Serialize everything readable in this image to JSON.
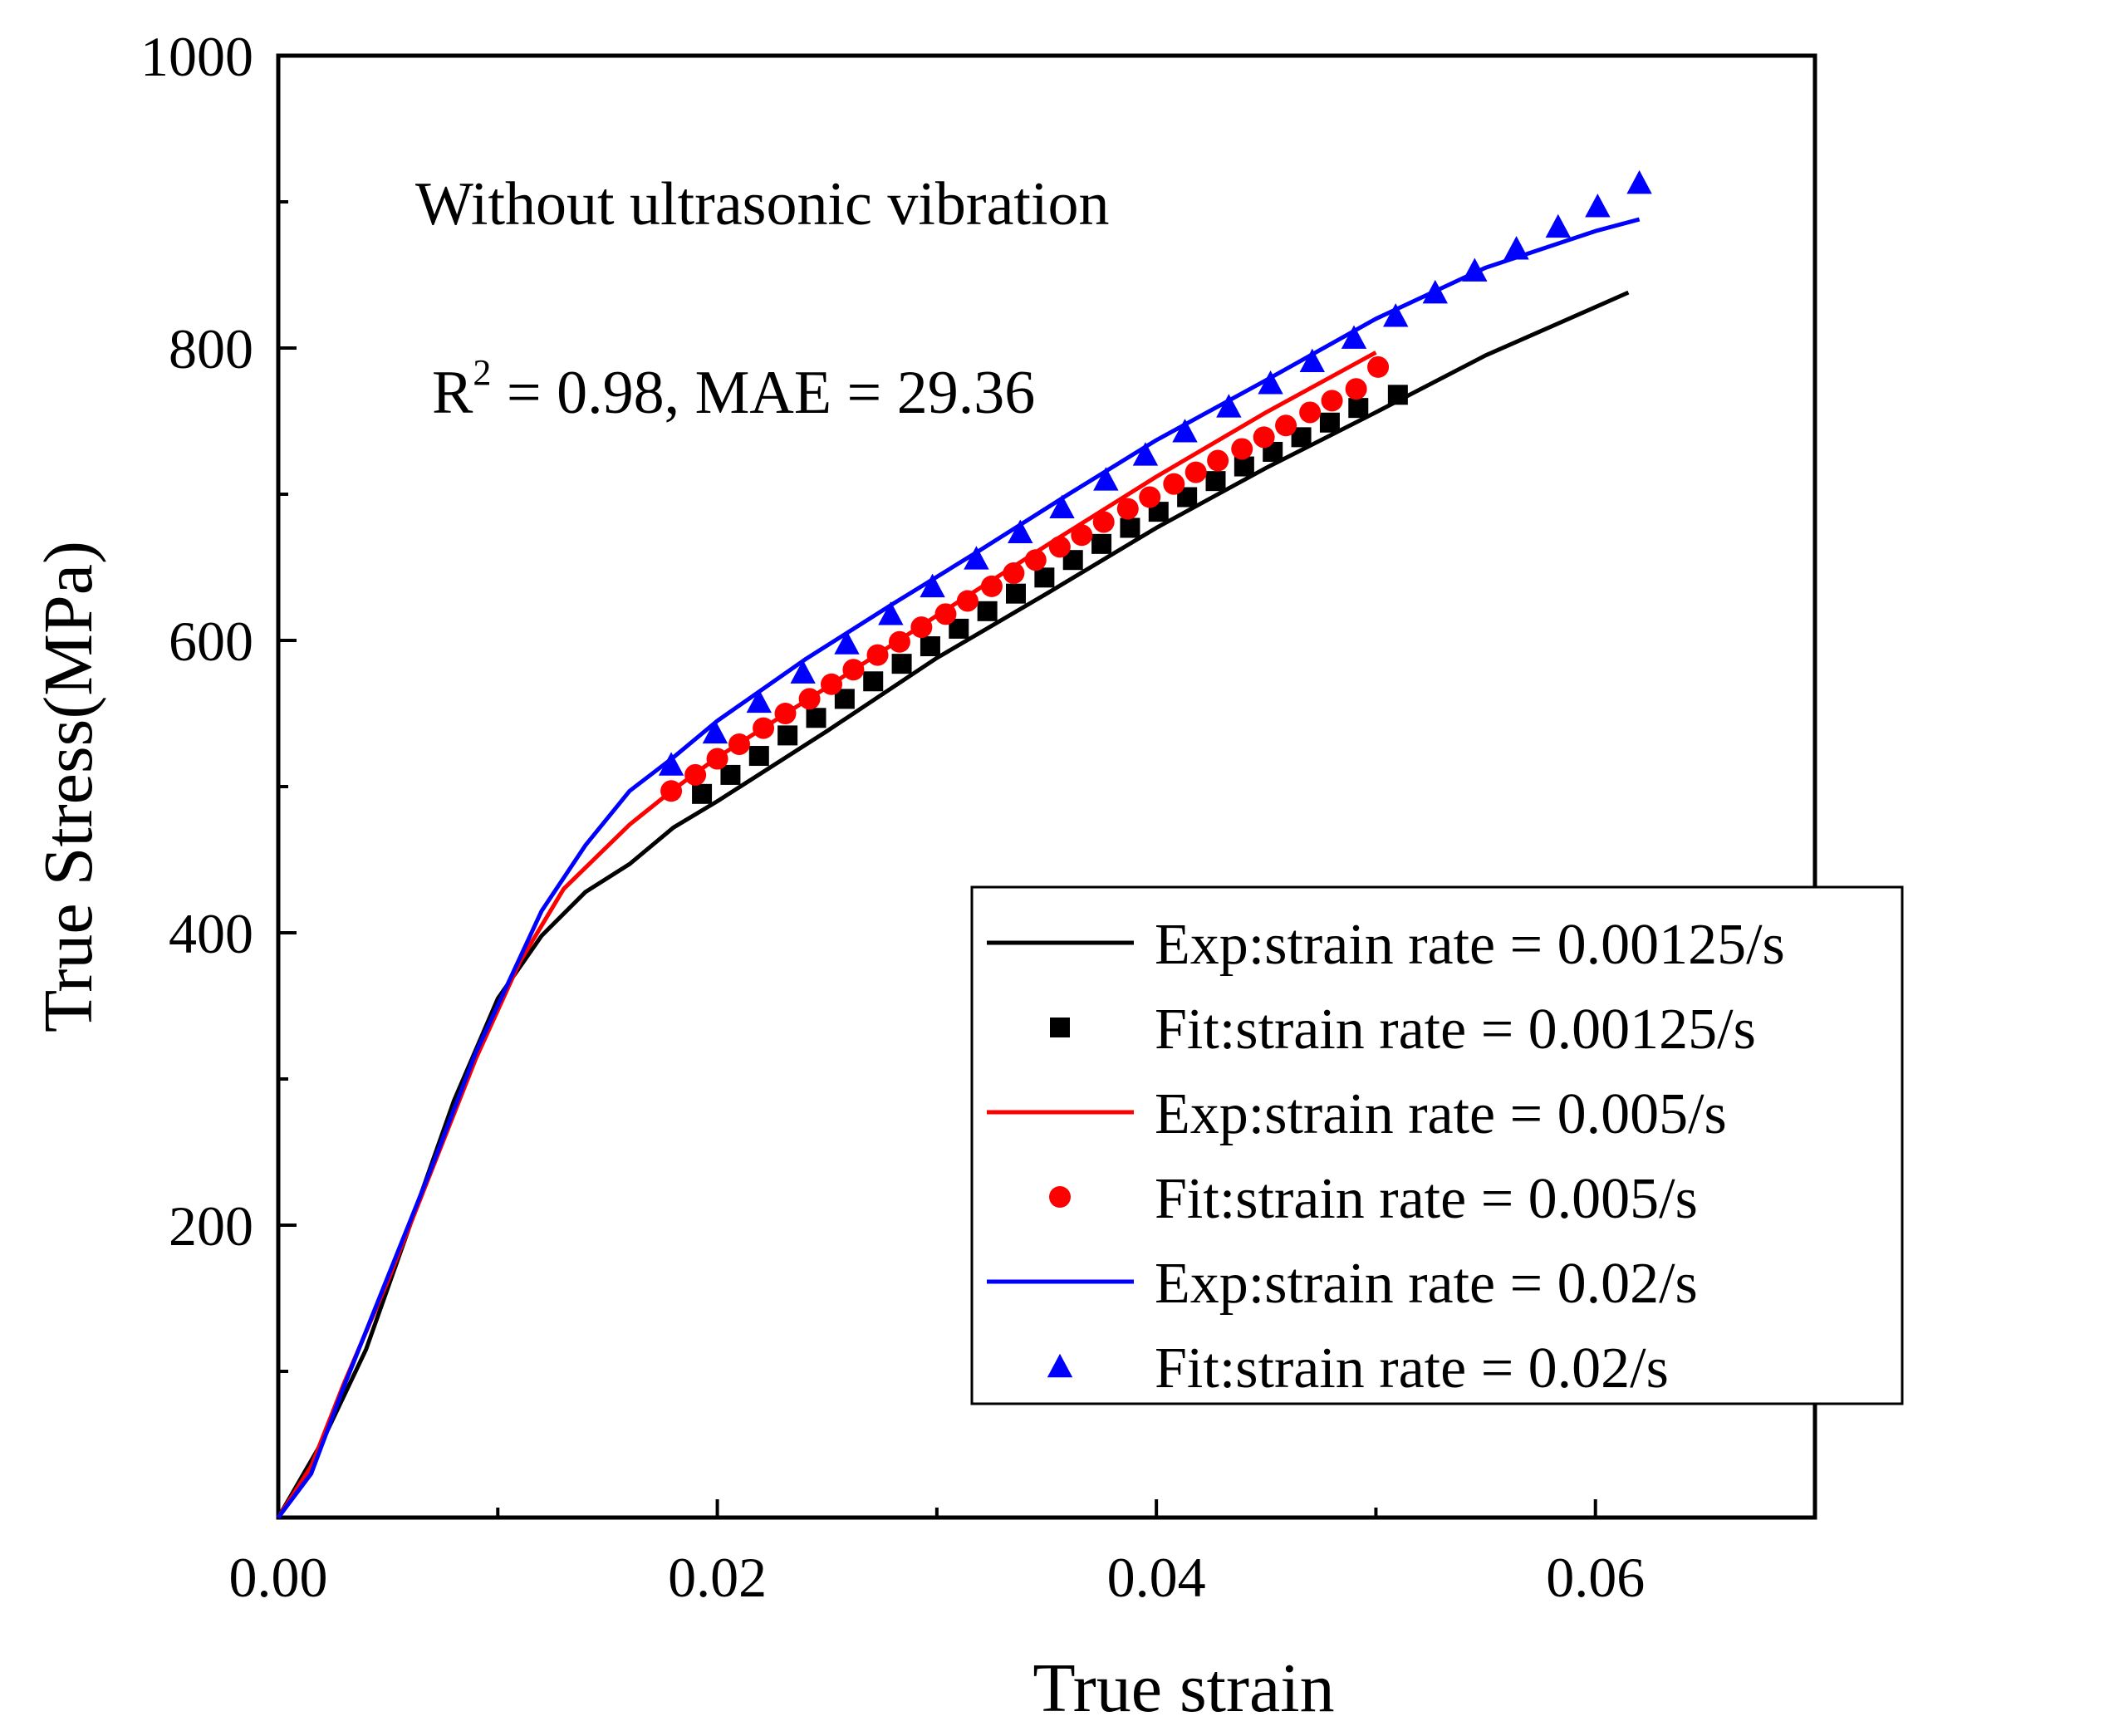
{
  "chart_data": {
    "type": "line",
    "title": "",
    "xlabel": "True strain",
    "ylabel": "True Stress(MPa)",
    "xlim": [
      0.0,
      0.07
    ],
    "ylim": [
      0,
      1000
    ],
    "x_major_ticks": [
      0.0,
      0.02,
      0.04,
      0.06
    ],
    "x_tick_labels": [
      "0.00",
      "0.02",
      "0.04",
      "0.06"
    ],
    "x_minor_ticks": [
      0.01,
      0.03,
      0.05
    ],
    "y_major_ticks": [
      200,
      400,
      600,
      800,
      1000
    ],
    "y_tick_labels": [
      "200",
      "400",
      "600",
      "800",
      "1000"
    ],
    "y_minor_ticks": [
      100,
      300,
      500,
      700,
      900
    ],
    "grid": false,
    "legend_position": "lower-right",
    "annotations": {
      "condition": "Without ultrasonic vibration",
      "r2_label": "R",
      "r2_sup": "2",
      "r2_rest": " = 0.98, MAE = 29.36"
    },
    "series": [
      {
        "name": "Exp:strain rate = 0.00125/s",
        "kind": "line",
        "color": "#000000",
        "points": [
          [
            0,
            0
          ],
          [
            0.002,
            52
          ],
          [
            0.004,
            115
          ],
          [
            0.006,
            200
          ],
          [
            0.008,
            285
          ],
          [
            0.01,
            355
          ],
          [
            0.012,
            398
          ],
          [
            0.014,
            428
          ],
          [
            0.016,
            447
          ],
          [
            0.018,
            472
          ],
          [
            0.02,
            490
          ],
          [
            0.025,
            538
          ],
          [
            0.03,
            588
          ],
          [
            0.035,
            632
          ],
          [
            0.04,
            677
          ],
          [
            0.045,
            718
          ],
          [
            0.05,
            756
          ],
          [
            0.055,
            795
          ],
          [
            0.06,
            828
          ],
          [
            0.0615,
            838
          ]
        ]
      },
      {
        "name": "Fit:strain rate = 0.00125/s",
        "kind": "scatter",
        "marker": "square",
        "color": "#000000",
        "points": [
          [
            0.0193,
            495
          ],
          [
            0.0206,
            508
          ],
          [
            0.0219,
            521
          ],
          [
            0.0232,
            535
          ],
          [
            0.0245,
            547
          ],
          [
            0.0258,
            560
          ],
          [
            0.0271,
            572
          ],
          [
            0.0284,
            584
          ],
          [
            0.0297,
            596
          ],
          [
            0.031,
            608
          ],
          [
            0.0323,
            620
          ],
          [
            0.0336,
            632
          ],
          [
            0.0349,
            643
          ],
          [
            0.0362,
            655
          ],
          [
            0.0375,
            666
          ],
          [
            0.0388,
            677
          ],
          [
            0.0401,
            688
          ],
          [
            0.0414,
            698
          ],
          [
            0.0427,
            709
          ],
          [
            0.044,
            719
          ],
          [
            0.0453,
            729
          ],
          [
            0.0466,
            739
          ],
          [
            0.0479,
            749
          ],
          [
            0.0492,
            759
          ],
          [
            0.051,
            768
          ]
        ]
      },
      {
        "name": "Exp:strain rate = 0.005/s",
        "kind": "line",
        "color": "#ff0000",
        "points": [
          [
            0,
            0
          ],
          [
            0.0015,
            35
          ],
          [
            0.003,
            92
          ],
          [
            0.005,
            162
          ],
          [
            0.007,
            238
          ],
          [
            0.009,
            314
          ],
          [
            0.011,
            380
          ],
          [
            0.013,
            430
          ],
          [
            0.016,
            474
          ],
          [
            0.018,
            498
          ],
          [
            0.02,
            520
          ],
          [
            0.025,
            568
          ],
          [
            0.03,
            617
          ],
          [
            0.035,
            665
          ],
          [
            0.04,
            712
          ],
          [
            0.045,
            756
          ],
          [
            0.05,
            797
          ]
        ]
      },
      {
        "name": "Fit:strain rate = 0.005/s",
        "kind": "scatter",
        "marker": "circle",
        "color": "#ff0000",
        "points": [
          [
            0.0179,
            497
          ],
          [
            0.019,
            508
          ],
          [
            0.02,
            519
          ],
          [
            0.021,
            529
          ],
          [
            0.0221,
            540
          ],
          [
            0.0231,
            550
          ],
          [
            0.0242,
            560
          ],
          [
            0.0252,
            570
          ],
          [
            0.0262,
            580
          ],
          [
            0.0273,
            590
          ],
          [
            0.0283,
            599
          ],
          [
            0.0293,
            609
          ],
          [
            0.0304,
            618
          ],
          [
            0.0314,
            627
          ],
          [
            0.0325,
            637
          ],
          [
            0.0335,
            646
          ],
          [
            0.0345,
            655
          ],
          [
            0.0356,
            664
          ],
          [
            0.0366,
            672
          ],
          [
            0.0376,
            681
          ],
          [
            0.0387,
            690
          ],
          [
            0.0397,
            698
          ],
          [
            0.0408,
            707
          ],
          [
            0.0418,
            715
          ],
          [
            0.0428,
            723
          ],
          [
            0.0439,
            731
          ],
          [
            0.0449,
            739
          ],
          [
            0.0459,
            747
          ],
          [
            0.047,
            756
          ],
          [
            0.048,
            764
          ],
          [
            0.0491,
            772
          ],
          [
            0.0501,
            787
          ]
        ]
      },
      {
        "name": "Exp:strain rate = 0.02/s",
        "kind": "line",
        "color": "#0000ff",
        "points": [
          [
            0,
            0
          ],
          [
            0.0015,
            30
          ],
          [
            0.003,
            90
          ],
          [
            0.005,
            165
          ],
          [
            0.007,
            240
          ],
          [
            0.009,
            318
          ],
          [
            0.012,
            415
          ],
          [
            0.014,
            460
          ],
          [
            0.016,
            497
          ],
          [
            0.018,
            520
          ],
          [
            0.02,
            545
          ],
          [
            0.024,
            587
          ],
          [
            0.028,
            625
          ],
          [
            0.032,
            662
          ],
          [
            0.036,
            700
          ],
          [
            0.04,
            737
          ],
          [
            0.045,
            778
          ],
          [
            0.05,
            820
          ],
          [
            0.055,
            855
          ],
          [
            0.06,
            880
          ],
          [
            0.062,
            888
          ]
        ]
      },
      {
        "name": "Fit:strain rate = 0.02/s",
        "kind": "scatter",
        "marker": "triangle",
        "color": "#0000ff",
        "points": [
          [
            0.0179,
            515
          ],
          [
            0.0199,
            537
          ],
          [
            0.0219,
            558
          ],
          [
            0.0239,
            578
          ],
          [
            0.0259,
            598
          ],
          [
            0.0279,
            618
          ],
          [
            0.0298,
            637
          ],
          [
            0.0318,
            656
          ],
          [
            0.0338,
            674
          ],
          [
            0.0357,
            691
          ],
          [
            0.0377,
            710
          ],
          [
            0.0395,
            727
          ],
          [
            0.0413,
            743
          ],
          [
            0.0433,
            760
          ],
          [
            0.0452,
            776
          ],
          [
            0.0471,
            791
          ],
          [
            0.049,
            807
          ],
          [
            0.0509,
            822
          ],
          [
            0.0527,
            838
          ],
          [
            0.0545,
            853
          ],
          [
            0.0564,
            868
          ],
          [
            0.0583,
            883
          ],
          [
            0.0601,
            897
          ],
          [
            0.062,
            913
          ]
        ]
      }
    ]
  }
}
